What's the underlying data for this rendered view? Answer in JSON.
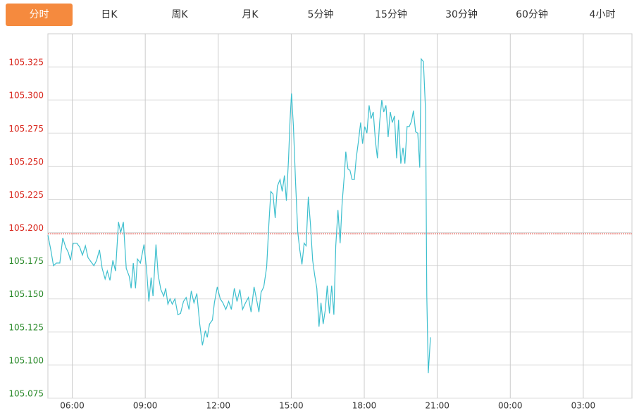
{
  "tabs": [
    "分时",
    "日K",
    "周K",
    "月K",
    "5分钟",
    "15分钟",
    "30分钟",
    "60分钟",
    "4小时"
  ],
  "active_tab": 0,
  "chart_data": {
    "type": "line",
    "xlim": [
      0,
      24
    ],
    "xticks": [
      {
        "value": 1,
        "label": "06:00"
      },
      {
        "value": 4,
        "label": "09:00"
      },
      {
        "value": 7,
        "label": "12:00"
      },
      {
        "value": 10,
        "label": "15:00"
      },
      {
        "value": 13,
        "label": "18:00"
      },
      {
        "value": 16,
        "label": "21:00"
      },
      {
        "value": 19,
        "label": "00:00"
      },
      {
        "value": 22,
        "label": "03:00"
      }
    ],
    "ylim": [
      105.075,
      105.35
    ],
    "yticks": [
      {
        "value": 105.075,
        "label": "105.075"
      },
      {
        "value": 105.1,
        "label": "105.100"
      },
      {
        "value": 105.125,
        "label": "105.125"
      },
      {
        "value": 105.15,
        "label": "105.150"
      },
      {
        "value": 105.175,
        "label": "105.175"
      },
      {
        "value": 105.2,
        "label": "105.200"
      },
      {
        "value": 105.225,
        "label": "105.225"
      },
      {
        "value": 105.25,
        "label": "105.250"
      },
      {
        "value": 105.275,
        "label": "105.275"
      },
      {
        "value": 105.3,
        "label": "105.300"
      },
      {
        "value": 105.325,
        "label": "105.325"
      }
    ],
    "ref_line": 105.199,
    "grid": true,
    "color": "#3dbfce",
    "up_color": "#d9261c",
    "down_color": "#2a8a2a",
    "x": [
      0,
      0.12,
      0.23,
      0.35,
      0.49,
      0.61,
      0.73,
      0.84,
      0.93,
      1.04,
      1.19,
      1.31,
      1.42,
      1.54,
      1.65,
      1.77,
      1.89,
      2.0,
      2.12,
      2.23,
      2.35,
      2.44,
      2.55,
      2.67,
      2.78,
      2.9,
      2.99,
      3.1,
      3.22,
      3.34,
      3.42,
      3.51,
      3.6,
      3.68,
      3.8,
      3.95,
      4.06,
      4.15,
      4.24,
      4.32,
      4.44,
      4.53,
      4.64,
      4.76,
      4.84,
      4.93,
      5.02,
      5.11,
      5.22,
      5.34,
      5.45,
      5.57,
      5.68,
      5.8,
      5.89,
      6.0,
      6.12,
      6.24,
      6.35,
      6.47,
      6.55,
      6.64,
      6.76,
      6.84,
      6.96,
      7.08,
      7.19,
      7.31,
      7.43,
      7.54,
      7.66,
      7.77,
      7.89,
      8.0,
      8.12,
      8.24,
      8.35,
      8.47,
      8.59,
      8.67,
      8.76,
      8.87,
      8.99,
      9.08,
      9.16,
      9.25,
      9.34,
      9.43,
      9.54,
      9.63,
      9.72,
      9.8,
      9.89,
      9.95,
      10.01,
      10.09,
      10.18,
      10.27,
      10.35,
      10.44,
      10.53,
      10.61,
      10.7,
      10.79,
      10.88,
      10.96,
      11.05,
      11.14,
      11.22,
      11.31,
      11.4,
      11.48,
      11.57,
      11.66,
      11.75,
      11.83,
      11.92,
      12.01,
      12.09,
      12.18,
      12.24,
      12.33,
      12.41,
      12.5,
      12.59,
      12.67,
      12.76,
      12.85,
      12.93,
      13.02,
      13.11,
      13.2,
      13.28,
      13.37,
      13.46,
      13.54,
      13.63,
      13.72,
      13.8,
      13.89,
      13.98,
      14.07,
      14.15,
      14.24,
      14.33,
      14.41,
      14.5,
      14.59,
      14.67,
      14.76,
      14.85,
      14.94,
      15.02,
      15.11,
      15.2,
      15.28,
      15.34,
      15.43,
      15.52,
      15.57,
      15.63,
      15.72
    ],
    "values": [
      105.198,
      105.187,
      105.175,
      105.177,
      105.177,
      105.196,
      105.189,
      105.185,
      105.179,
      105.192,
      105.192,
      105.189,
      105.183,
      105.19,
      105.181,
      105.178,
      105.175,
      105.179,
      105.187,
      105.173,
      105.165,
      105.171,
      105.164,
      105.179,
      105.171,
      105.208,
      105.2,
      105.208,
      105.173,
      105.167,
      105.158,
      105.177,
      105.158,
      105.18,
      105.177,
      105.191,
      105.171,
      105.148,
      105.166,
      105.152,
      105.191,
      105.168,
      105.157,
      105.152,
      105.158,
      105.146,
      105.15,
      105.146,
      105.15,
      105.138,
      105.139,
      105.148,
      105.151,
      105.142,
      105.156,
      105.147,
      105.154,
      105.131,
      105.115,
      105.126,
      105.121,
      105.131,
      105.134,
      105.147,
      105.159,
      105.15,
      105.147,
      105.142,
      105.148,
      105.142,
      105.158,
      105.148,
      105.157,
      105.142,
      105.147,
      105.151,
      105.14,
      105.159,
      105.148,
      105.14,
      105.155,
      105.159,
      105.174,
      105.206,
      105.231,
      105.229,
      105.211,
      105.235,
      105.24,
      105.231,
      105.243,
      105.224,
      105.256,
      105.285,
      105.305,
      105.28,
      105.237,
      105.2,
      105.187,
      105.176,
      105.192,
      105.19,
      105.227,
      105.206,
      105.179,
      105.168,
      105.158,
      105.129,
      105.147,
      105.131,
      105.142,
      105.16,
      105.139,
      105.16,
      105.138,
      105.19,
      105.217,
      105.192,
      105.222,
      105.243,
      105.261,
      105.248,
      105.247,
      105.24,
      105.24,
      105.256,
      105.269,
      105.283,
      105.267,
      105.28,
      105.275,
      105.296,
      105.286,
      105.291,
      105.269,
      105.256,
      105.283,
      105.3,
      105.291,
      105.296,
      105.272,
      105.291,
      105.283,
      105.288,
      105.256,
      105.285,
      105.252,
      105.264,
      105.252,
      105.28,
      105.28,
      105.284,
      105.292,
      105.276,
      105.275,
      105.249,
      105.331,
      105.329,
      105.291,
      105.152,
      105.094,
      105.121
    ]
  }
}
